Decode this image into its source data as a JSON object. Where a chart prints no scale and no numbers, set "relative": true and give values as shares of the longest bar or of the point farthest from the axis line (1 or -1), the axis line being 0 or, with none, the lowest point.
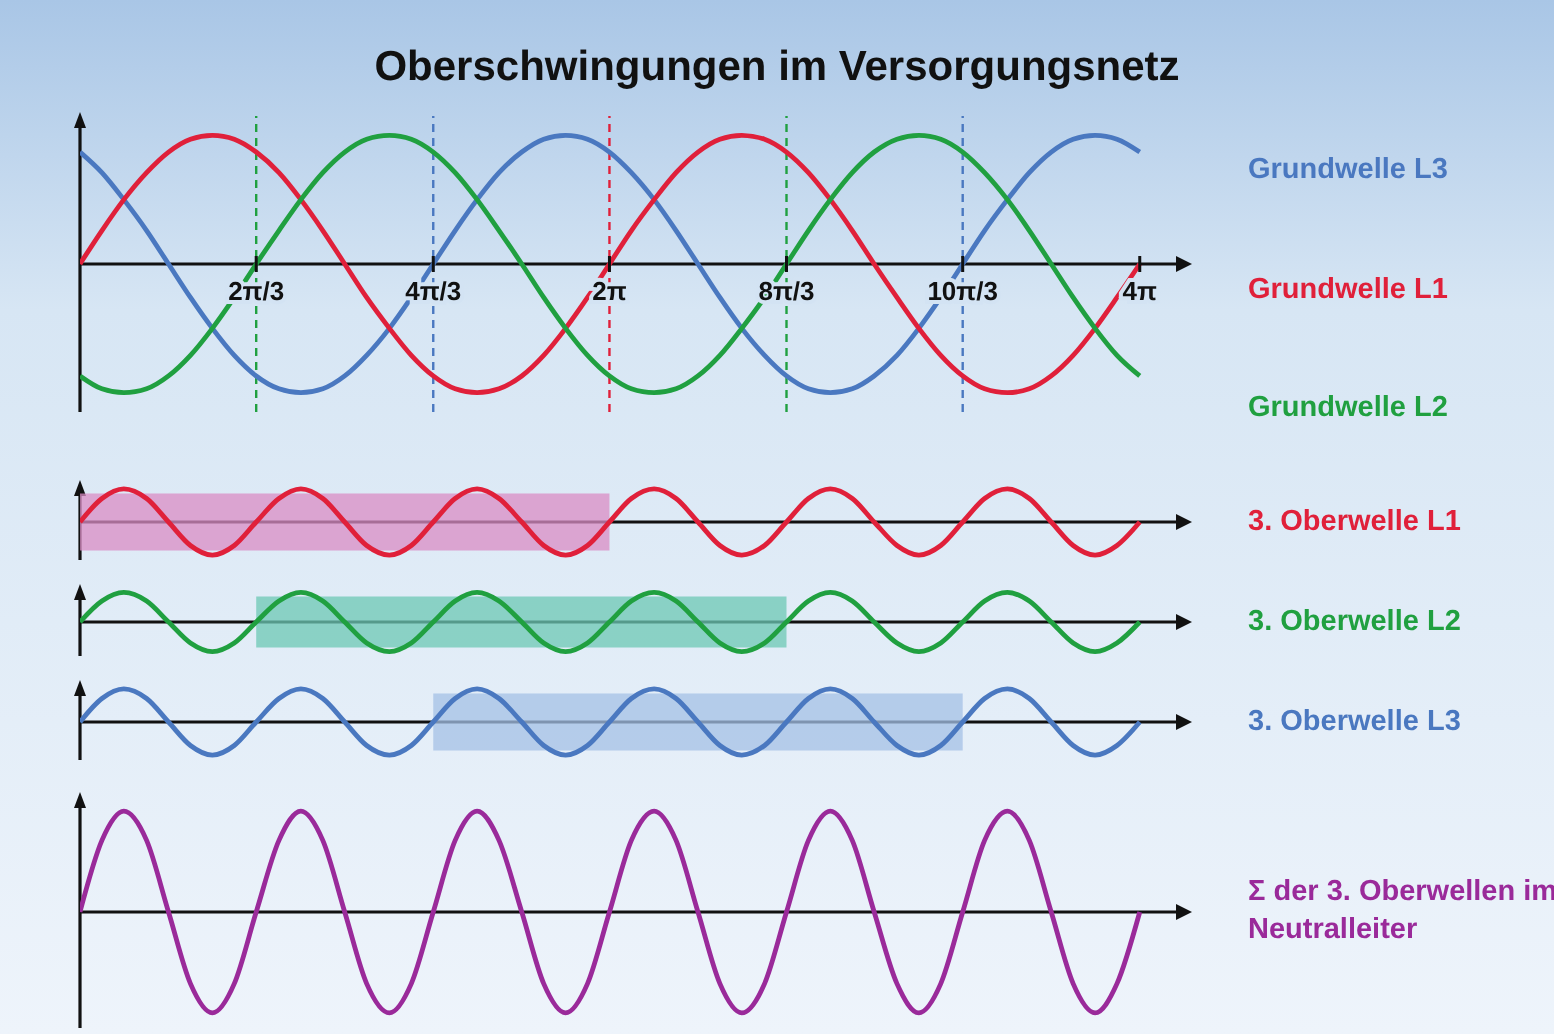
{
  "chart_data": [
    {
      "type": "line",
      "title": "Oberschwingungen im Versorgungsnetz",
      "relative": true,
      "legend": false,
      "marker": "none",
      "tick_labels": "x",
      "xlim": [
        0,
        13
      ],
      "xticks": [
        {
          "value": 2.09,
          "label": "2π/3"
        },
        {
          "value": 4.19,
          "label": "4π/3"
        },
        {
          "value": 6.28,
          "label": "2π"
        },
        {
          "value": 8.38,
          "label": "8π/3"
        },
        {
          "value": 10.47,
          "label": "10π/3"
        },
        {
          "value": 12.57,
          "label": "4π"
        }
      ],
      "ref_lines": [
        {
          "axis": "x",
          "value": 2.09,
          "color": "#20a040",
          "line_style": "dashed"
        },
        {
          "axis": "x",
          "value": 4.19,
          "color": "#4a78c0",
          "line_style": "dashed"
        },
        {
          "axis": "x",
          "value": 6.28,
          "color": "#e0203a",
          "line_style": "dashed"
        },
        {
          "axis": "x",
          "value": 8.38,
          "color": "#20a040",
          "line_style": "dashed"
        },
        {
          "axis": "x",
          "value": 10.47,
          "color": "#4a78c0",
          "line_style": "dashed"
        }
      ],
      "x": [
        0,
        0.26,
        0.52,
        0.79,
        1.05,
        1.31,
        1.57,
        1.83,
        2.09,
        2.36,
        2.62,
        2.88,
        3.14,
        3.4,
        3.67,
        3.93,
        4.19,
        4.45,
        4.71,
        4.97,
        5.24,
        5.5,
        5.76,
        6.02,
        6.28,
        6.54,
        6.81,
        7.07,
        7.33,
        7.59,
        7.85,
        8.12,
        8.38,
        8.64,
        8.9,
        9.16,
        9.42,
        9.69,
        9.95,
        10.21,
        10.47,
        10.73,
        11,
        11.26,
        11.52,
        11.78,
        12.04,
        12.3,
        12.57
      ],
      "series": [
        {
          "name": "Grundwelle L3",
          "color": "#4a78c0",
          "values": [
            0.87,
            0.71,
            0.5,
            0.26,
            0,
            -0.26,
            -0.5,
            -0.71,
            -0.87,
            -0.97,
            -1,
            -0.97,
            -0.87,
            -0.71,
            -0.5,
            -0.26,
            0,
            0.26,
            0.5,
            0.71,
            0.87,
            0.97,
            1,
            0.97,
            0.87,
            0.71,
            0.5,
            0.26,
            0,
            -0.26,
            -0.5,
            -0.71,
            -0.87,
            -0.97,
            -1,
            -0.97,
            -0.87,
            -0.71,
            -0.5,
            -0.26,
            0,
            0.26,
            0.5,
            0.71,
            0.87,
            0.97,
            1,
            0.97,
            0.87
          ]
        },
        {
          "name": "Grundwelle L1",
          "color": "#e0203a",
          "values": [
            0,
            0.26,
            0.5,
            0.71,
            0.87,
            0.97,
            1,
            0.97,
            0.87,
            0.71,
            0.5,
            0.26,
            0,
            -0.26,
            -0.5,
            -0.71,
            -0.87,
            -0.97,
            -1,
            -0.97,
            -0.87,
            -0.71,
            -0.5,
            -0.26,
            0,
            0.26,
            0.5,
            0.71,
            0.87,
            0.97,
            1,
            0.97,
            0.87,
            0.71,
            0.5,
            0.26,
            0,
            -0.26,
            -0.5,
            -0.71,
            -0.87,
            -0.97,
            -1,
            -0.97,
            -0.87,
            -0.71,
            -0.5,
            -0.26,
            0
          ]
        },
        {
          "name": "Grundwelle L2",
          "color": "#20a040",
          "values": [
            -0.87,
            -0.97,
            -1,
            -0.97,
            -0.87,
            -0.71,
            -0.5,
            -0.26,
            0,
            0.26,
            0.5,
            0.71,
            0.87,
            0.97,
            1,
            0.97,
            0.87,
            0.71,
            0.5,
            0.26,
            0,
            -0.26,
            -0.5,
            -0.71,
            -0.87,
            -0.97,
            -1,
            -0.97,
            -0.87,
            -0.71,
            -0.5,
            -0.26,
            0,
            0.26,
            0.5,
            0.71,
            0.87,
            0.97,
            1,
            0.97,
            0.87,
            0.71,
            0.5,
            0.26,
            0,
            -0.26,
            -0.5,
            -0.71,
            -0.87
          ]
        }
      ]
    },
    {
      "type": "line",
      "relative": true,
      "legend": false,
      "marker": "none",
      "tick_labels": false,
      "xlim": [
        0,
        13
      ],
      "bands": [
        {
          "axis": "x",
          "from": 0,
          "to": 6.28,
          "color": "#d98cc4"
        }
      ],
      "x": [
        0,
        0.26,
        0.52,
        0.79,
        1.05,
        1.31,
        1.57,
        1.83,
        2.09,
        2.36,
        2.62,
        2.88,
        3.14,
        3.4,
        3.67,
        3.93,
        4.19,
        4.45,
        4.71,
        4.97,
        5.24,
        5.5,
        5.76,
        6.02,
        6.28,
        6.54,
        6.81,
        7.07,
        7.33,
        7.59,
        7.85,
        8.12,
        8.38,
        8.64,
        8.9,
        9.16,
        9.42,
        9.69,
        9.95,
        10.21,
        10.47,
        10.73,
        11,
        11.26,
        11.52,
        11.78,
        12.04,
        12.3,
        12.57
      ],
      "series": [
        {
          "name": "3. Oberwelle L1",
          "color": "#e0203a",
          "values": [
            0,
            0.71,
            1,
            0.71,
            0,
            -0.71,
            -1,
            -0.71,
            0,
            0.71,
            1,
            0.71,
            0,
            -0.71,
            -1,
            -0.71,
            0,
            0.71,
            1,
            0.71,
            0,
            -0.71,
            -1,
            -0.71,
            0,
            0.71,
            1,
            0.71,
            0,
            -0.71,
            -1,
            -0.71,
            0,
            0.71,
            1,
            0.71,
            0,
            -0.71,
            -1,
            -0.71,
            0,
            0.71,
            1,
            0.71,
            0,
            -0.71,
            -1,
            -0.71,
            0
          ]
        }
      ]
    },
    {
      "type": "line",
      "relative": true,
      "legend": false,
      "marker": "none",
      "tick_labels": false,
      "xlim": [
        0,
        13
      ],
      "bands": [
        {
          "axis": "x",
          "from": 2.09,
          "to": 8.38,
          "color": "#6cc8b4"
        }
      ],
      "x": [
        0,
        0.26,
        0.52,
        0.79,
        1.05,
        1.31,
        1.57,
        1.83,
        2.09,
        2.36,
        2.62,
        2.88,
        3.14,
        3.4,
        3.67,
        3.93,
        4.19,
        4.45,
        4.71,
        4.97,
        5.24,
        5.5,
        5.76,
        6.02,
        6.28,
        6.54,
        6.81,
        7.07,
        7.33,
        7.59,
        7.85,
        8.12,
        8.38,
        8.64,
        8.9,
        9.16,
        9.42,
        9.69,
        9.95,
        10.21,
        10.47,
        10.73,
        11,
        11.26,
        11.52,
        11.78,
        12.04,
        12.3,
        12.57
      ],
      "series": [
        {
          "name": "3. Oberwelle L2",
          "color": "#20a040",
          "values": [
            0,
            0.71,
            1,
            0.71,
            0,
            -0.71,
            -1,
            -0.71,
            0,
            0.71,
            1,
            0.71,
            0,
            -0.71,
            -1,
            -0.71,
            0,
            0.71,
            1,
            0.71,
            0,
            -0.71,
            -1,
            -0.71,
            0,
            0.71,
            1,
            0.71,
            0,
            -0.71,
            -1,
            -0.71,
            0,
            0.71,
            1,
            0.71,
            0,
            -0.71,
            -1,
            -0.71,
            0,
            0.71,
            1,
            0.71,
            0,
            -0.71,
            -1,
            -0.71,
            0
          ]
        }
      ]
    },
    {
      "type": "line",
      "relative": true,
      "legend": false,
      "marker": "none",
      "tick_labels": false,
      "xlim": [
        0,
        13
      ],
      "bands": [
        {
          "axis": "x",
          "from": 4.19,
          "to": 10.47,
          "color": "#a4c0e6"
        }
      ],
      "x": [
        0,
        0.26,
        0.52,
        0.79,
        1.05,
        1.31,
        1.57,
        1.83,
        2.09,
        2.36,
        2.62,
        2.88,
        3.14,
        3.4,
        3.67,
        3.93,
        4.19,
        4.45,
        4.71,
        4.97,
        5.24,
        5.5,
        5.76,
        6.02,
        6.28,
        6.54,
        6.81,
        7.07,
        7.33,
        7.59,
        7.85,
        8.12,
        8.38,
        8.64,
        8.9,
        9.16,
        9.42,
        9.69,
        9.95,
        10.21,
        10.47,
        10.73,
        11,
        11.26,
        11.52,
        11.78,
        12.04,
        12.3,
        12.57
      ],
      "series": [
        {
          "name": "3. Oberwelle L3",
          "color": "#4a78c0",
          "values": [
            0,
            0.71,
            1,
            0.71,
            0,
            -0.71,
            -1,
            -0.71,
            0,
            0.71,
            1,
            0.71,
            0,
            -0.71,
            -1,
            -0.71,
            0,
            0.71,
            1,
            0.71,
            0,
            -0.71,
            -1,
            -0.71,
            0,
            0.71,
            1,
            0.71,
            0,
            -0.71,
            -1,
            -0.71,
            0,
            0.71,
            1,
            0.71,
            0,
            -0.71,
            -1,
            -0.71,
            0,
            0.71,
            1,
            0.71,
            0,
            -0.71,
            -1,
            -0.71,
            0
          ]
        }
      ]
    },
    {
      "type": "line",
      "relative": true,
      "legend": false,
      "marker": "none",
      "tick_labels": false,
      "xlim": [
        0,
        13
      ],
      "x": [
        0,
        0.26,
        0.52,
        0.79,
        1.05,
        1.31,
        1.57,
        1.83,
        2.09,
        2.36,
        2.62,
        2.88,
        3.14,
        3.4,
        3.67,
        3.93,
        4.19,
        4.45,
        4.71,
        4.97,
        5.24,
        5.5,
        5.76,
        6.02,
        6.28,
        6.54,
        6.81,
        7.07,
        7.33,
        7.59,
        7.85,
        8.12,
        8.38,
        8.64,
        8.9,
        9.16,
        9.42,
        9.69,
        9.95,
        10.21,
        10.47,
        10.73,
        11,
        11.26,
        11.52,
        11.78,
        12.04,
        12.3,
        12.57
      ],
      "series": [
        {
          "name": "Σ der 3. Oberwellen im Neutralleiter",
          "color": "#9a2a9a",
          "values": [
            0,
            0.71,
            1,
            0.71,
            0,
            -0.71,
            -1,
            -0.71,
            0,
            0.71,
            1,
            0.71,
            0,
            -0.71,
            -1,
            -0.71,
            0,
            0.71,
            1,
            0.71,
            0,
            -0.71,
            -1,
            -0.71,
            0,
            0.71,
            1,
            0.71,
            0,
            -0.71,
            -1,
            -0.71,
            0,
            0.71,
            1,
            0.71,
            0,
            -0.71,
            -1,
            -0.71,
            0,
            0.71,
            1,
            0.71,
            0,
            -0.71,
            -1,
            -0.71,
            0
          ]
        }
      ]
    }
  ]
}
